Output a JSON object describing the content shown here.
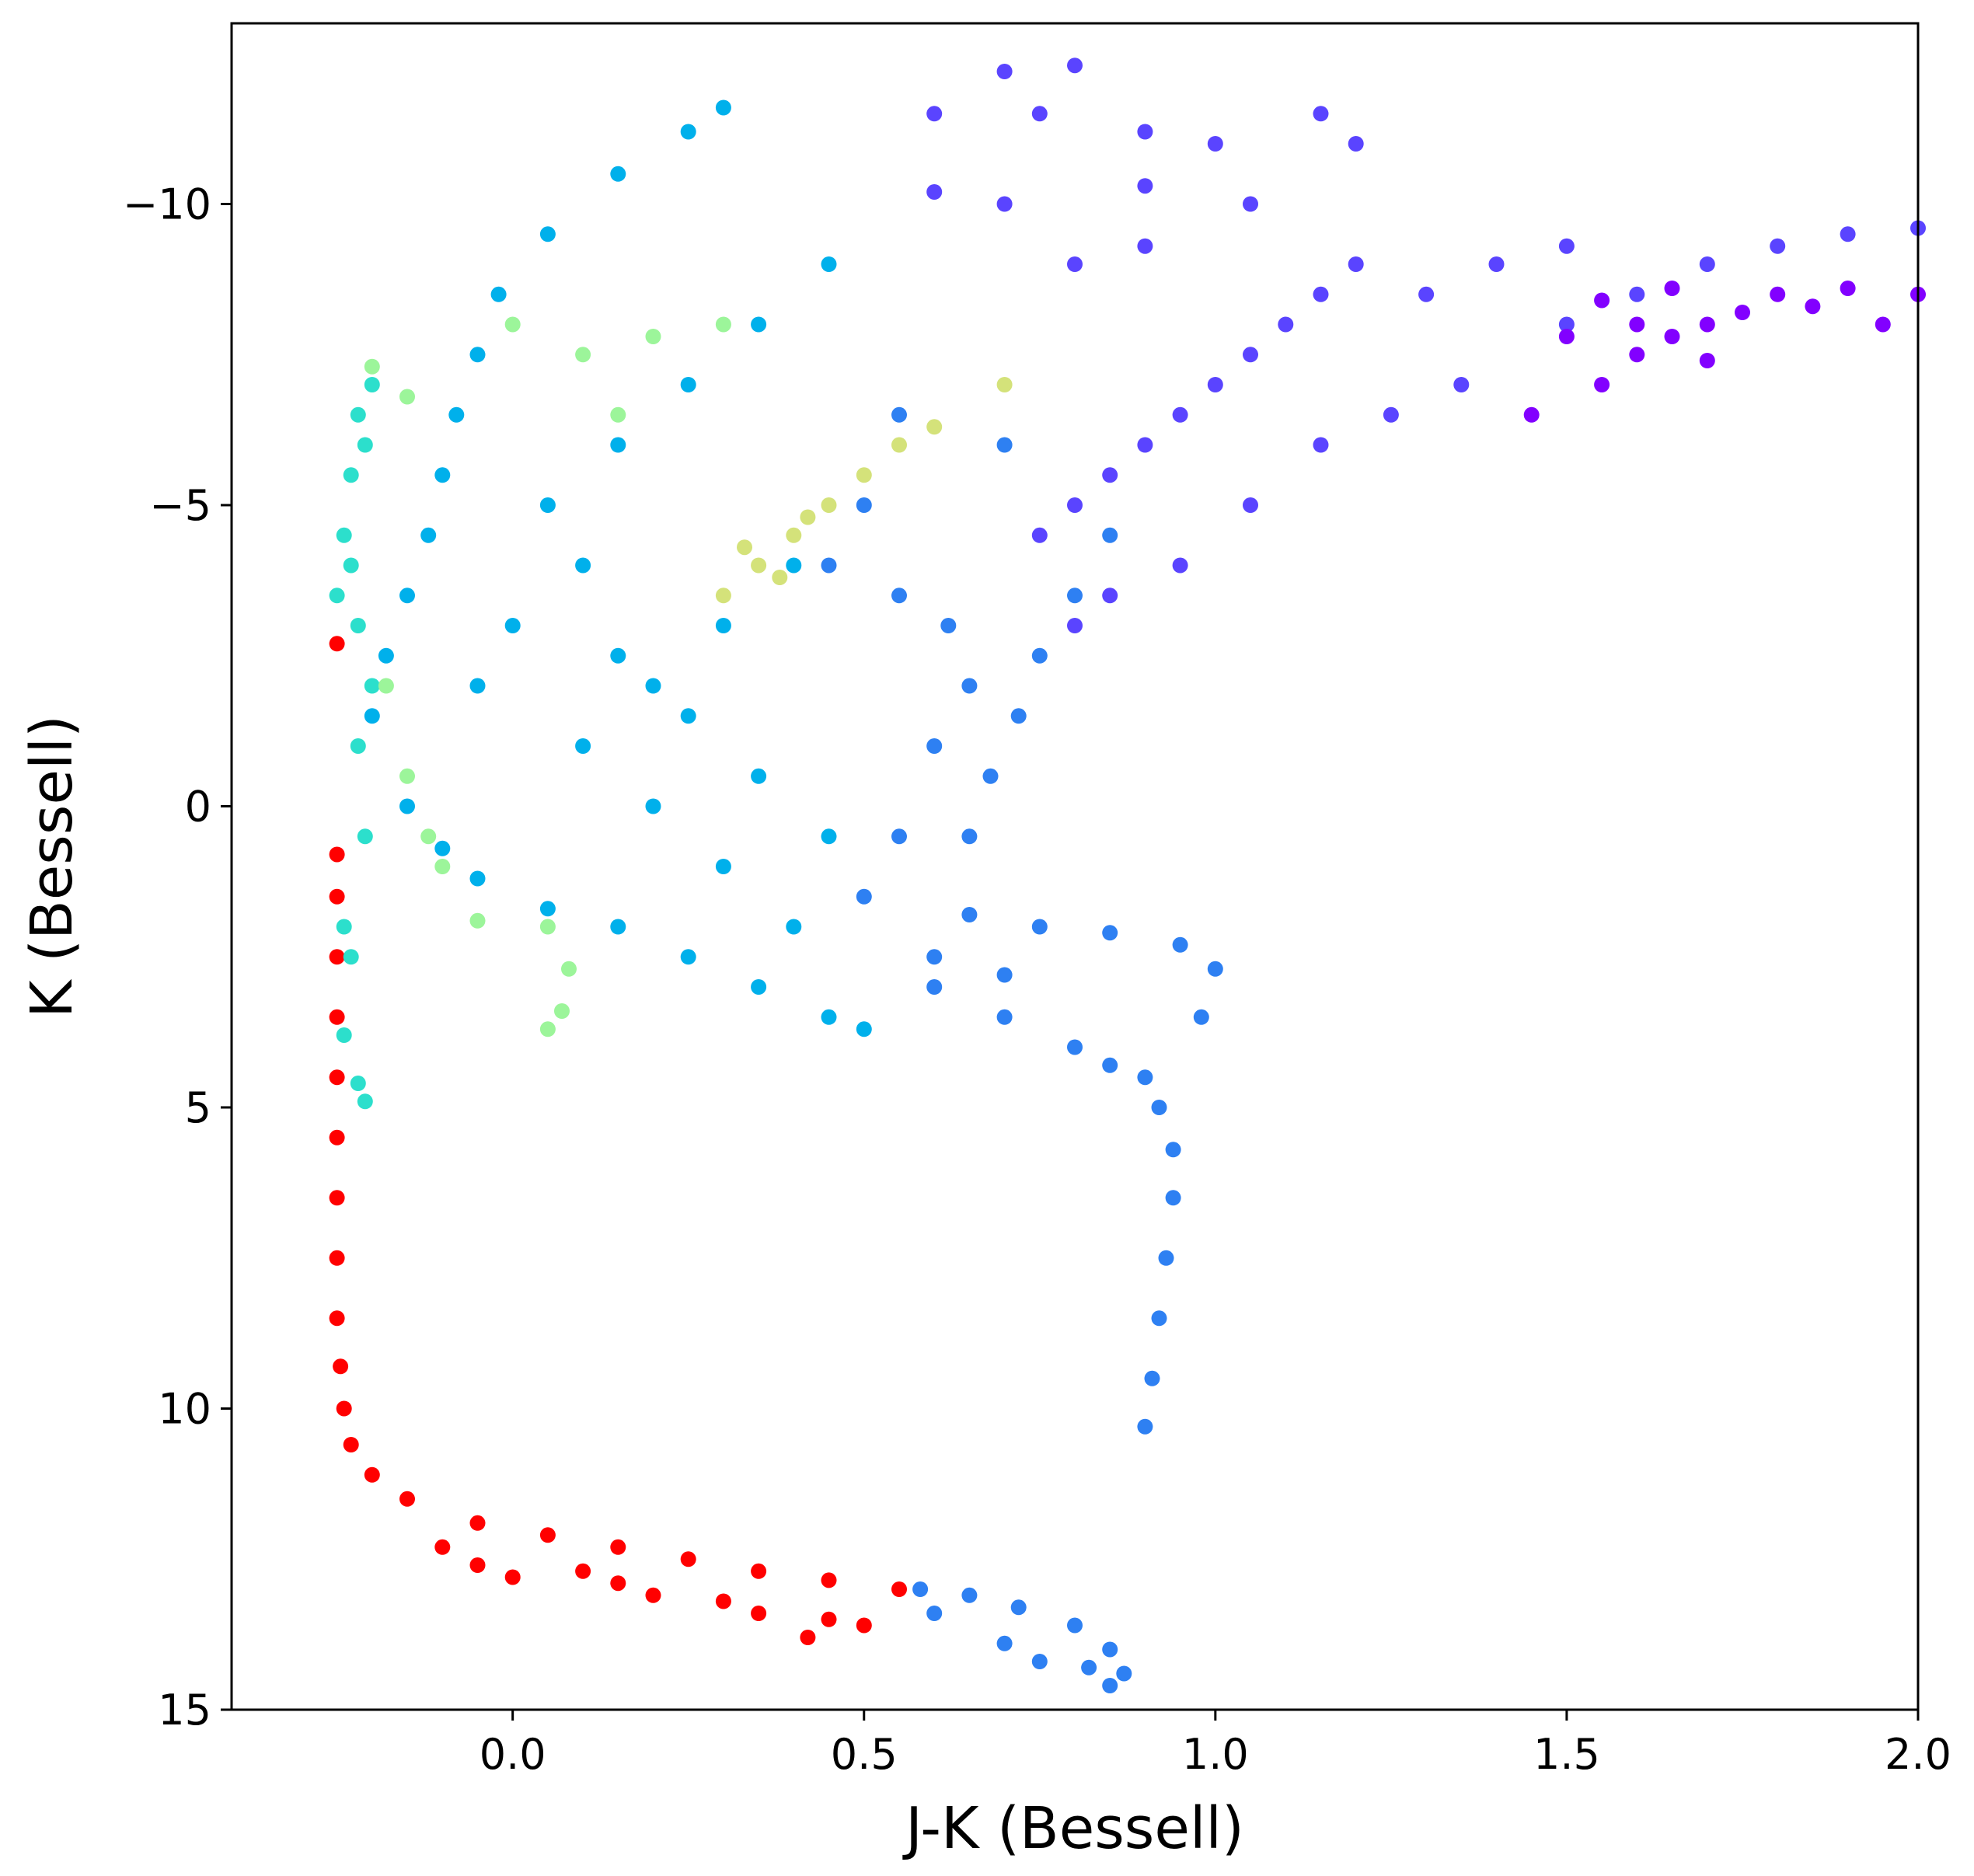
{
  "chart_data": {
    "type": "scatter",
    "title": "",
    "xlabel": "J-K (Bessell)",
    "ylabel": "K (Bessell)",
    "xlim": [
      -0.4,
      2.0
    ],
    "ylim": [
      15,
      -13
    ],
    "y_inverted": true,
    "grid": false,
    "legend": "none",
    "xticks": [
      0.0,
      0.5,
      1.0,
      1.5,
      2.0
    ],
    "xtick_labels": [
      "0.0",
      "0.5",
      "1.0",
      "1.5",
      "2.0"
    ],
    "yticks": [
      -10,
      -5,
      0,
      5,
      10,
      15
    ],
    "ytick_labels": [
      "−10",
      "−5",
      "0",
      "5",
      "10",
      "15"
    ],
    "colormap": "rainbow",
    "colors": {
      "red": "#ff0000",
      "blue": "#2e80f2",
      "cyan": "#00b0eb",
      "sky": "#12a7e6",
      "teal": "#2cdfcc",
      "aqua": "#3ee8d2",
      "green": "#9cf59a",
      "yellowgreen": "#d4e27a",
      "indigo": "#5a44ff",
      "violet": "#6e33ff",
      "purple": "#8200ff"
    },
    "series": [
      {
        "color": "#ff0000",
        "points": [
          [
            -0.25,
            0.8
          ],
          [
            -0.25,
            1.5
          ],
          [
            -0.25,
            2.5
          ],
          [
            -0.25,
            3.5
          ],
          [
            -0.25,
            4.5
          ],
          [
            -0.25,
            5.5
          ],
          [
            -0.25,
            6.5
          ],
          [
            -0.25,
            7.5
          ],
          [
            -0.25,
            8.5
          ],
          [
            -0.245,
            9.3
          ],
          [
            -0.24,
            10.0
          ],
          [
            -0.23,
            10.6
          ],
          [
            -0.2,
            11.1
          ],
          [
            -0.15,
            11.5
          ],
          [
            -0.05,
            11.9
          ],
          [
            0.05,
            12.1
          ],
          [
            0.15,
            12.3
          ],
          [
            0.25,
            12.5
          ],
          [
            0.35,
            12.7
          ],
          [
            0.45,
            12.85
          ],
          [
            0.55,
            13.0
          ],
          [
            -0.25,
            -2.7
          ],
          [
            -0.1,
            12.3
          ],
          [
            -0.05,
            12.6
          ],
          [
            0.0,
            12.8
          ],
          [
            0.1,
            12.7
          ],
          [
            0.15,
            12.9
          ],
          [
            0.2,
            13.1
          ],
          [
            0.3,
            13.2
          ],
          [
            0.35,
            13.4
          ],
          [
            0.45,
            13.5
          ],
          [
            0.5,
            13.6
          ],
          [
            0.42,
            13.8
          ]
        ]
      },
      {
        "color": "#2e80f2",
        "points": [
          [
            0.58,
            13.0
          ],
          [
            0.65,
            13.1
          ],
          [
            0.72,
            13.3
          ],
          [
            0.8,
            13.6
          ],
          [
            0.85,
            14.0
          ],
          [
            0.87,
            14.4
          ],
          [
            0.85,
            14.6
          ],
          [
            0.6,
            13.4
          ],
          [
            0.7,
            13.9
          ],
          [
            0.75,
            14.2
          ],
          [
            0.82,
            14.3
          ],
          [
            0.9,
            10.3
          ],
          [
            0.91,
            9.5
          ],
          [
            0.92,
            8.5
          ],
          [
            0.93,
            7.5
          ],
          [
            0.94,
            6.5
          ],
          [
            0.94,
            5.7
          ],
          [
            0.92,
            5.0
          ],
          [
            0.9,
            4.5
          ],
          [
            0.98,
            3.5
          ],
          [
            1.0,
            2.7
          ],
          [
            0.95,
            2.3
          ],
          [
            0.85,
            2.1
          ],
          [
            0.75,
            2.0
          ],
          [
            0.65,
            1.8
          ],
          [
            0.6,
            3.0
          ],
          [
            0.7,
            3.5
          ],
          [
            0.8,
            4.0
          ],
          [
            0.85,
            4.3
          ],
          [
            0.65,
            0.5
          ],
          [
            0.68,
            -0.5
          ],
          [
            0.72,
            -1.5
          ],
          [
            0.75,
            -2.5
          ],
          [
            0.8,
            -3.5
          ],
          [
            0.85,
            -4.5
          ],
          [
            0.65,
            -2.0
          ],
          [
            0.62,
            -3.0
          ],
          [
            0.7,
            -6.0
          ],
          [
            0.55,
            -6.5
          ],
          [
            0.5,
            -5.0
          ],
          [
            0.45,
            -4.0
          ],
          [
            0.55,
            -3.5
          ],
          [
            0.6,
            -1.0
          ],
          [
            0.55,
            0.5
          ],
          [
            0.5,
            1.5
          ],
          [
            0.6,
            2.5
          ],
          [
            0.7,
            2.8
          ]
        ]
      },
      {
        "color": "#00b0eb",
        "points": [
          [
            -0.2,
            -1.5
          ],
          [
            -0.18,
            -2.5
          ],
          [
            -0.15,
            -3.5
          ],
          [
            -0.12,
            -4.5
          ],
          [
            -0.1,
            -5.5
          ],
          [
            -0.08,
            -6.5
          ],
          [
            -0.05,
            -7.5
          ],
          [
            -0.02,
            -8.5
          ],
          [
            0.05,
            -9.5
          ],
          [
            0.15,
            -10.5
          ],
          [
            0.25,
            -11.2
          ],
          [
            0.3,
            -11.6
          ],
          [
            -0.15,
            0.0
          ],
          [
            -0.1,
            0.7
          ],
          [
            -0.05,
            1.2
          ],
          [
            0.05,
            1.7
          ],
          [
            0.15,
            2.0
          ],
          [
            0.25,
            2.5
          ],
          [
            0.35,
            3.0
          ],
          [
            0.45,
            3.5
          ],
          [
            0.5,
            3.7
          ],
          [
            0.1,
            -1.0
          ],
          [
            0.2,
            -2.0
          ],
          [
            0.3,
            -3.0
          ],
          [
            0.4,
            -4.0
          ],
          [
            0.05,
            -5.0
          ],
          [
            0.15,
            -6.0
          ],
          [
            0.25,
            -7.0
          ],
          [
            0.35,
            -8.0
          ],
          [
            0.45,
            -9.0
          ],
          [
            0.0,
            -3.0
          ],
          [
            0.1,
            -4.0
          ],
          [
            0.2,
            0.0
          ],
          [
            0.3,
            1.0
          ],
          [
            0.4,
            2.0
          ],
          [
            0.45,
            0.5
          ],
          [
            0.35,
            -0.5
          ],
          [
            0.25,
            -1.5
          ],
          [
            0.15,
            -2.5
          ],
          [
            -0.05,
            -2.0
          ]
        ]
      },
      {
        "color": "#2cdfcc",
        "points": [
          [
            -0.25,
            -3.5
          ],
          [
            -0.24,
            -4.5
          ],
          [
            -0.23,
            -5.5
          ],
          [
            -0.22,
            -6.5
          ],
          [
            -0.2,
            -7.0
          ],
          [
            -0.21,
            -6.0
          ],
          [
            -0.23,
            -4.0
          ],
          [
            -0.22,
            -1.0
          ],
          [
            -0.21,
            0.5
          ],
          [
            -0.24,
            2.0
          ],
          [
            -0.23,
            2.5
          ],
          [
            -0.24,
            3.8
          ],
          [
            -0.22,
            4.6
          ],
          [
            -0.21,
            4.9
          ],
          [
            -0.2,
            -2.0
          ],
          [
            -0.22,
            -3.0
          ]
        ]
      },
      {
        "color": "#9cf59a",
        "points": [
          [
            -0.2,
            -7.3
          ],
          [
            -0.15,
            -6.8
          ],
          [
            -0.18,
            -2.0
          ],
          [
            -0.15,
            -0.5
          ],
          [
            -0.12,
            0.5
          ],
          [
            -0.1,
            1.0
          ],
          [
            -0.05,
            1.9
          ],
          [
            0.05,
            2.0
          ],
          [
            0.08,
            2.7
          ],
          [
            0.07,
            3.4
          ],
          [
            0.05,
            3.7
          ],
          [
            0.0,
            -8.0
          ],
          [
            0.1,
            -7.5
          ],
          [
            0.2,
            -7.8
          ],
          [
            0.3,
            -8.0
          ],
          [
            0.15,
            -6.5
          ]
        ]
      },
      {
        "color": "#d4e27a",
        "points": [
          [
            0.3,
            -3.5
          ],
          [
            0.35,
            -4.0
          ],
          [
            0.4,
            -4.5
          ],
          [
            0.45,
            -5.0
          ],
          [
            0.42,
            -4.8
          ],
          [
            0.38,
            -3.8
          ],
          [
            0.33,
            -4.3
          ],
          [
            0.5,
            -5.5
          ],
          [
            0.55,
            -6.0
          ],
          [
            0.6,
            -6.3
          ],
          [
            0.7,
            -7.0
          ]
        ]
      },
      {
        "color": "#5a44ff",
        "points": [
          [
            0.75,
            -4.5
          ],
          [
            0.8,
            -5.0
          ],
          [
            0.85,
            -5.5
          ],
          [
            0.9,
            -6.0
          ],
          [
            0.95,
            -6.5
          ],
          [
            1.0,
            -7.0
          ],
          [
            1.05,
            -7.5
          ],
          [
            1.1,
            -8.0
          ],
          [
            1.15,
            -8.5
          ],
          [
            1.2,
            -9.0
          ],
          [
            0.8,
            -3.0
          ],
          [
            0.85,
            -3.5
          ],
          [
            0.95,
            -4.0
          ],
          [
            1.05,
            -5.0
          ],
          [
            1.15,
            -6.0
          ],
          [
            1.25,
            -6.5
          ],
          [
            1.35,
            -7.0
          ],
          [
            1.5,
            -8.0
          ],
          [
            1.6,
            -8.5
          ],
          [
            1.7,
            -9.0
          ],
          [
            1.8,
            -9.3
          ],
          [
            1.9,
            -9.5
          ],
          [
            2.0,
            -9.6
          ],
          [
            1.3,
            -8.5
          ],
          [
            1.4,
            -9.0
          ],
          [
            1.5,
            -9.3
          ],
          [
            1.2,
            -11.0
          ],
          [
            1.15,
            -11.5
          ],
          [
            0.6,
            -11.5
          ],
          [
            0.75,
            -11.5
          ],
          [
            0.8,
            -12.3
          ],
          [
            0.7,
            -12.2
          ],
          [
            0.9,
            -11.2
          ],
          [
            1.0,
            -11.0
          ],
          [
            0.8,
            -9.0
          ],
          [
            0.9,
            -9.3
          ],
          [
            0.7,
            -10.0
          ],
          [
            0.6,
            -10.2
          ],
          [
            0.9,
            -10.3
          ],
          [
            1.05,
            -10.0
          ]
        ]
      },
      {
        "color": "#8200ff",
        "points": [
          [
            1.45,
            -6.5
          ],
          [
            1.55,
            -7.0
          ],
          [
            1.6,
            -7.5
          ],
          [
            1.65,
            -7.8
          ],
          [
            1.7,
            -8.0
          ],
          [
            1.75,
            -8.2
          ],
          [
            1.8,
            -8.5
          ],
          [
            1.85,
            -8.3
          ],
          [
            1.9,
            -8.6
          ],
          [
            1.95,
            -8.0
          ],
          [
            2.0,
            -8.5
          ],
          [
            1.65,
            -8.6
          ],
          [
            1.55,
            -8.4
          ],
          [
            1.6,
            -8.0
          ],
          [
            1.7,
            -7.4
          ],
          [
            1.5,
            -7.8
          ]
        ]
      }
    ]
  }
}
